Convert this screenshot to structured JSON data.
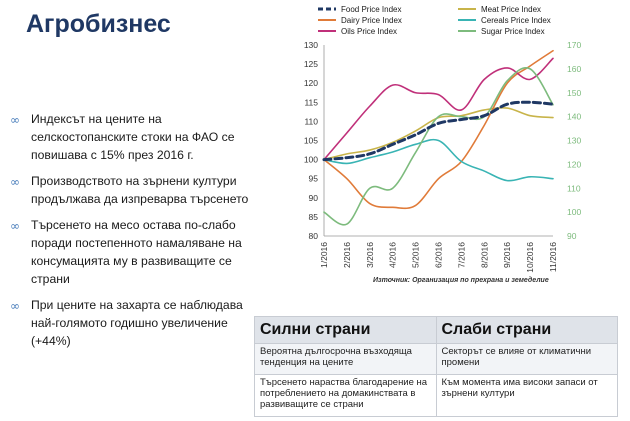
{
  "page": {
    "title": "Агробизнес",
    "bullets": [
      "Индексът на цените на селскостопанските стоки на ФАО се повишава с 15% през 2016 г.",
      "Производството на зърнени култури продължава да изпреварва търсенето",
      "Търсенето на месо остава по-слабо поради постепенното намаляване на консумацията му в развиващите се страни",
      "При цените на захарта се наблюдава най-голямото годишно увеличение (+44%)"
    ],
    "bullet_icon": "link-icon",
    "source": "Източник: Организация по прехрана и земеделие"
  },
  "table": {
    "headers": [
      "Силни страни",
      "Слаби страни"
    ],
    "rows": [
      [
        "Вероятна дългосрочна възходяща тенденция на цените",
        "Секторът се влияе от климатични промени"
      ],
      [
        "Търсенето нараства благодарение на потреблението на домакинствата в развиващите се страни",
        "Към момента има високи запаси от зърнени култури"
      ]
    ]
  },
  "chart_data": {
    "type": "line",
    "categories": [
      "1/2016",
      "2/2016",
      "3/2016",
      "4/2016",
      "5/2016",
      "6/2016",
      "7/2016",
      "8/2016",
      "9/2016",
      "10/2016",
      "11/2016"
    ],
    "ylim": [
      80,
      130
    ],
    "yticks": [
      80,
      85,
      90,
      95,
      100,
      105,
      110,
      115,
      120,
      125,
      130
    ],
    "y2lim": [
      90,
      170
    ],
    "y2ticks": [
      90,
      100,
      110,
      120,
      130,
      140,
      150,
      160,
      170
    ],
    "legend_position": "top",
    "series": [
      {
        "name": "Food Price Index",
        "axis": "left",
        "color": "#1f3864",
        "dash": true,
        "width": 3,
        "values": [
          100,
          100.5,
          101.5,
          104,
          106.5,
          109.5,
          110.5,
          111.5,
          114.5,
          115,
          114.5
        ]
      },
      {
        "name": "Meat Price Index",
        "axis": "left",
        "color": "#c8b44a",
        "dash": false,
        "width": 1.6,
        "values": [
          100,
          101.5,
          102.5,
          104.5,
          107.5,
          111,
          111.5,
          113,
          113.5,
          111.5,
          111
        ]
      },
      {
        "name": "Dairy Price Index",
        "axis": "left",
        "color": "#e07b39",
        "dash": false,
        "width": 1.6,
        "values": [
          100,
          95,
          88.5,
          87.5,
          88,
          95,
          99.5,
          109,
          120,
          124.5,
          128.5
        ]
      },
      {
        "name": "Cereals Price Index",
        "axis": "left",
        "color": "#39b4b4",
        "dash": false,
        "width": 1.6,
        "values": [
          100,
          99,
          100.5,
          102,
          104,
          105,
          99.5,
          97,
          94.5,
          95.5,
          95
        ]
      },
      {
        "name": "Oils Price Index",
        "axis": "left",
        "color": "#c0307a",
        "dash": false,
        "width": 1.6,
        "values": [
          100,
          107,
          114,
          119.5,
          117.5,
          117,
          113,
          121,
          124,
          121,
          126.5
        ]
      },
      {
        "name": "Sugar Price Index",
        "axis": "right",
        "color": "#7dbb7d",
        "dash": false,
        "width": 1.6,
        "values": [
          100,
          95,
          110,
          110,
          125,
          140,
          140,
          140,
          155,
          160,
          145
        ]
      }
    ]
  }
}
